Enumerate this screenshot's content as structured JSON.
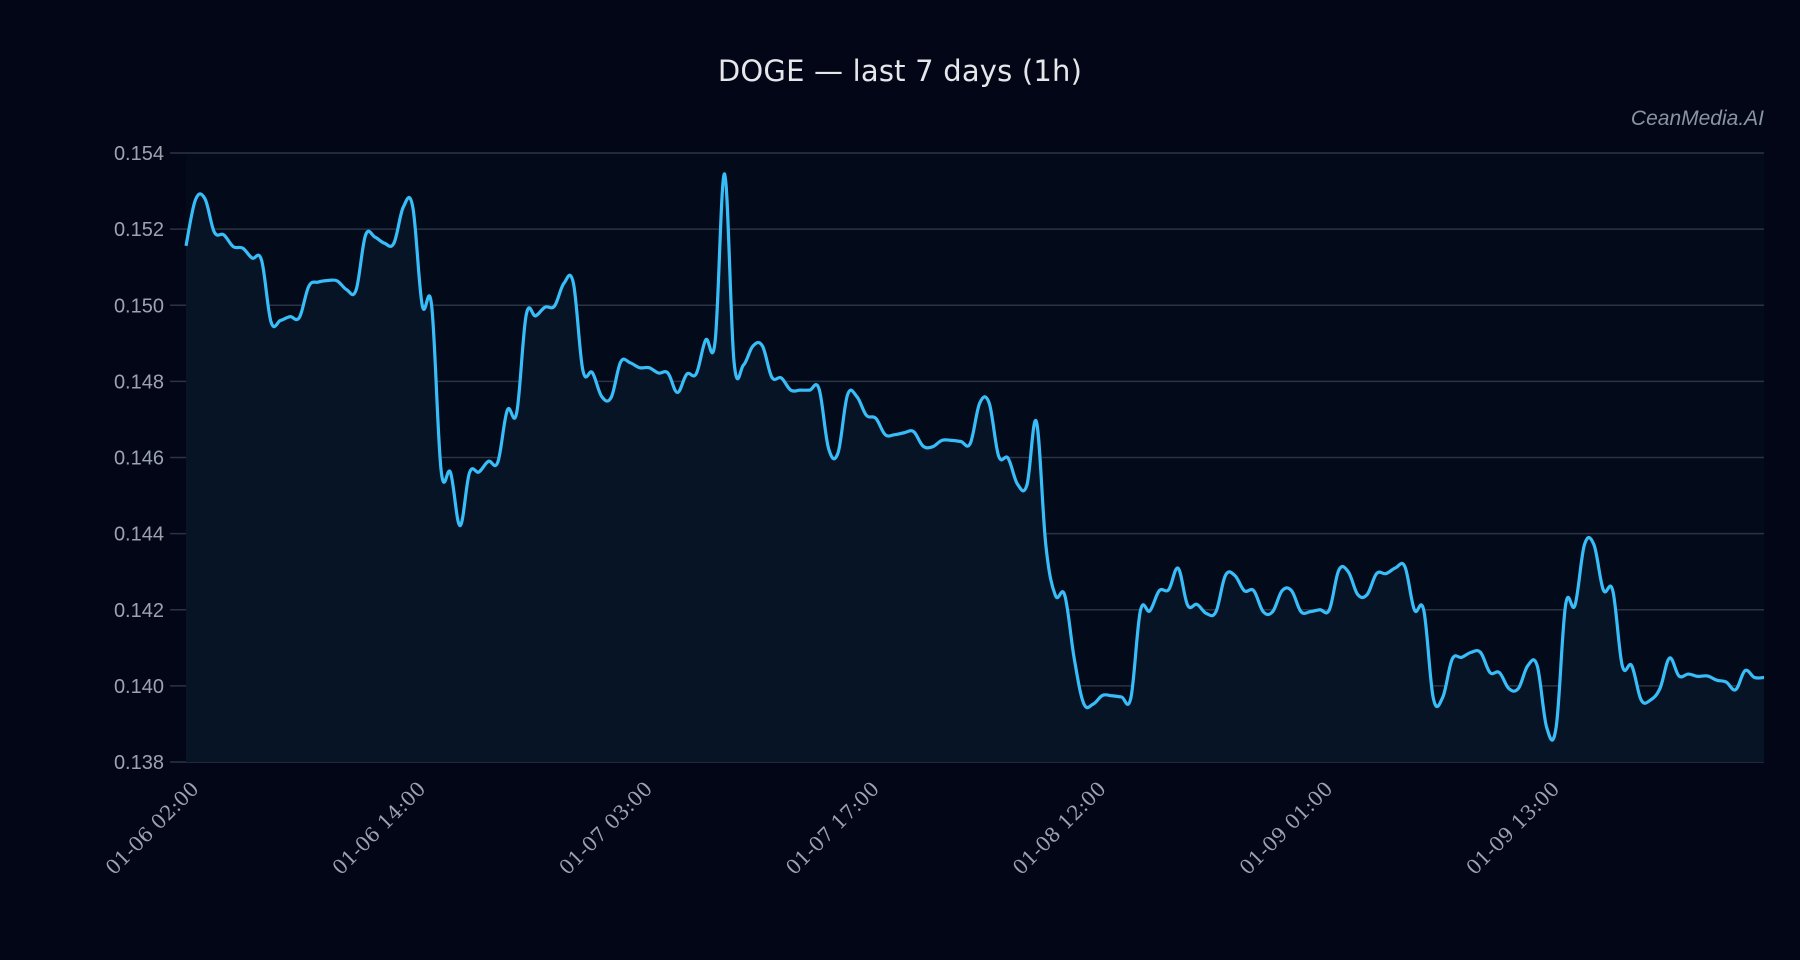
{
  "header": {
    "title": "DOGE — last 7 days (1h)",
    "watermark": "CeanMedia.AI"
  },
  "colors": {
    "background": "#020617",
    "plot_fill": "#071426",
    "line": "#38bdf8",
    "grid": "#2a3445",
    "tick_label": "#9ca3af",
    "title": "#e5e7eb"
  },
  "chart_data": {
    "type": "area",
    "title": "DOGE — last 7 days (1h)",
    "xlabel": "",
    "ylabel": "",
    "ylim": [
      0.138,
      0.154
    ],
    "grid": true,
    "legend": null,
    "yticks": [
      "0.138",
      "0.140",
      "0.142",
      "0.144",
      "0.146",
      "0.148",
      "0.150",
      "0.152",
      "0.154"
    ],
    "xticks": [
      {
        "index": 0,
        "label": "01-06 02:00"
      },
      {
        "index": 24,
        "label": "01-06 14:00"
      },
      {
        "index": 48,
        "label": "01-07 03:00"
      },
      {
        "index": 72,
        "label": "01-07 17:00"
      },
      {
        "index": 96,
        "label": "01-08 12:00"
      },
      {
        "index": 120,
        "label": "01-09 01:00"
      },
      {
        "index": 144,
        "label": "01-09 13:00"
      }
    ],
    "series": [
      {
        "name": "DOGE",
        "values": [
          0.15156,
          0.15277,
          0.1528,
          0.15192,
          0.15185,
          0.15154,
          0.1515,
          0.15124,
          0.15118,
          0.14956,
          0.1496,
          0.1497,
          0.14968,
          0.1505,
          0.15061,
          0.15065,
          0.15064,
          0.15041,
          0.1504,
          0.15184,
          0.15179,
          0.15163,
          0.15163,
          0.15258,
          0.15258,
          0.15,
          0.14998,
          0.14566,
          0.1456,
          0.14421,
          0.1456,
          0.14562,
          0.1459,
          0.14588,
          0.14724,
          0.14718,
          0.14974,
          0.14972,
          0.14995,
          0.14998,
          0.15058,
          0.15058,
          0.14829,
          0.14823,
          0.1476,
          0.14758,
          0.14851,
          0.14849,
          0.14836,
          0.14836,
          0.14822,
          0.14822,
          0.14771,
          0.14819,
          0.1482,
          0.14909,
          0.14906,
          0.15345,
          0.14851,
          0.14843,
          0.14893,
          0.14893,
          0.14811,
          0.14809,
          0.14777,
          0.14777,
          0.14777,
          0.1478,
          0.14624,
          0.14612,
          0.14764,
          0.1476,
          0.14711,
          0.14703,
          0.1466,
          0.1466,
          0.14665,
          0.14668,
          0.1463,
          0.14628,
          0.14645,
          0.14645,
          0.14642,
          0.14637,
          0.14743,
          0.14743,
          0.14604,
          0.14598,
          0.1453,
          0.14528,
          0.14694,
          0.14369,
          0.14238,
          0.14238,
          0.14072,
          0.13954,
          0.13952,
          0.13975,
          0.13974,
          0.13971,
          0.13969,
          0.14197,
          0.14197,
          0.1425,
          0.14253,
          0.14309,
          0.14212,
          0.14214,
          0.1419,
          0.14195,
          0.1429,
          0.1429,
          0.1425,
          0.1425,
          0.14195,
          0.14195,
          0.1425,
          0.1425,
          0.14195,
          0.14195,
          0.142,
          0.142,
          0.14304,
          0.143,
          0.1424,
          0.1424,
          0.14295,
          0.14295,
          0.1431,
          0.14313,
          0.142,
          0.14198,
          0.13968,
          0.1397,
          0.1407,
          0.14075,
          0.14088,
          0.14088,
          0.14035,
          0.14035,
          0.13993,
          0.13993,
          0.14053,
          0.14053,
          0.13891,
          0.13891,
          0.14212,
          0.14212,
          0.14371,
          0.14371,
          0.14252,
          0.1425,
          0.14053,
          0.14053,
          0.13963,
          0.13963,
          0.13994,
          0.14073,
          0.14026,
          0.14031,
          0.14025,
          0.14026,
          0.14015,
          0.1401,
          0.1399,
          0.1404,
          0.14022,
          0.14022
        ]
      }
    ]
  }
}
